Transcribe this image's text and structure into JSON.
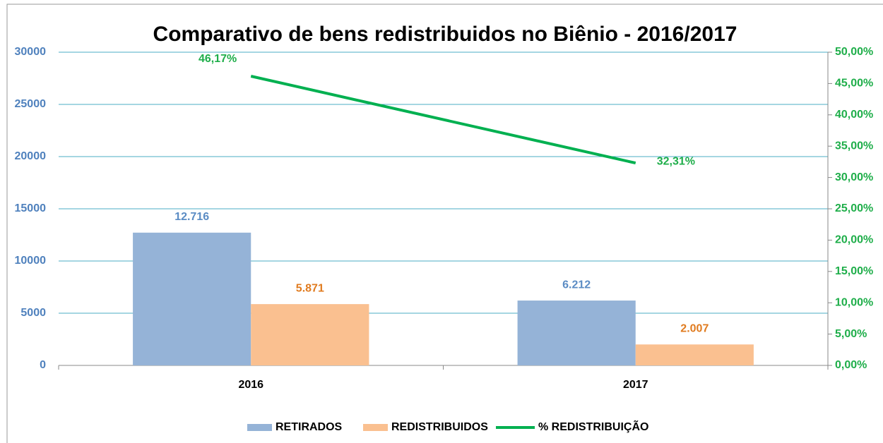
{
  "chart_data": {
    "type": "bar",
    "title": "Comparativo de bens redistribuidos no Biênio - 2016/2017",
    "categories": [
      "2016",
      "2017"
    ],
    "series": [
      {
        "name": "RETIRADOS",
        "color": "#95b3d7",
        "label_color": "#5b8cc4",
        "values": [
          12716,
          6212
        ],
        "value_labels": [
          "12.716",
          "6.212"
        ]
      },
      {
        "name": "REDISTRIBUIDOS",
        "color": "#fac090",
        "label_color": "#e07b1f",
        "values": [
          5871,
          2007
        ],
        "value_labels": [
          "5.871",
          "2.007"
        ]
      },
      {
        "name": "% REDISTRIBUIÇÃO",
        "type": "line",
        "axis": "y2",
        "color": "#00b050",
        "label_color": "#1fae4a",
        "values": [
          46.17,
          32.31
        ],
        "value_labels": [
          "46,17%",
          "32,31%"
        ]
      }
    ],
    "ylim": [
      0,
      30000
    ],
    "yticks": [
      0,
      5000,
      10000,
      15000,
      20000,
      25000,
      30000
    ],
    "y2lim": [
      0,
      50
    ],
    "y2ticks": [
      {
        "value": 0,
        "label": "0,00%"
      },
      {
        "value": 5,
        "label": "5,00%"
      },
      {
        "value": 10,
        "label": "10,00%"
      },
      {
        "value": 15,
        "label": "15,00%"
      },
      {
        "value": 20,
        "label": "20,00%"
      },
      {
        "value": 25,
        "label": "25,00%"
      },
      {
        "value": 30,
        "label": "30,00%"
      },
      {
        "value": 35,
        "label": "35,00%"
      },
      {
        "value": 40,
        "label": "40,00%"
      },
      {
        "value": 45,
        "label": "45,00%"
      },
      {
        "value": 50,
        "label": "50,00%"
      }
    ],
    "grid": true,
    "legend": "bottom"
  }
}
